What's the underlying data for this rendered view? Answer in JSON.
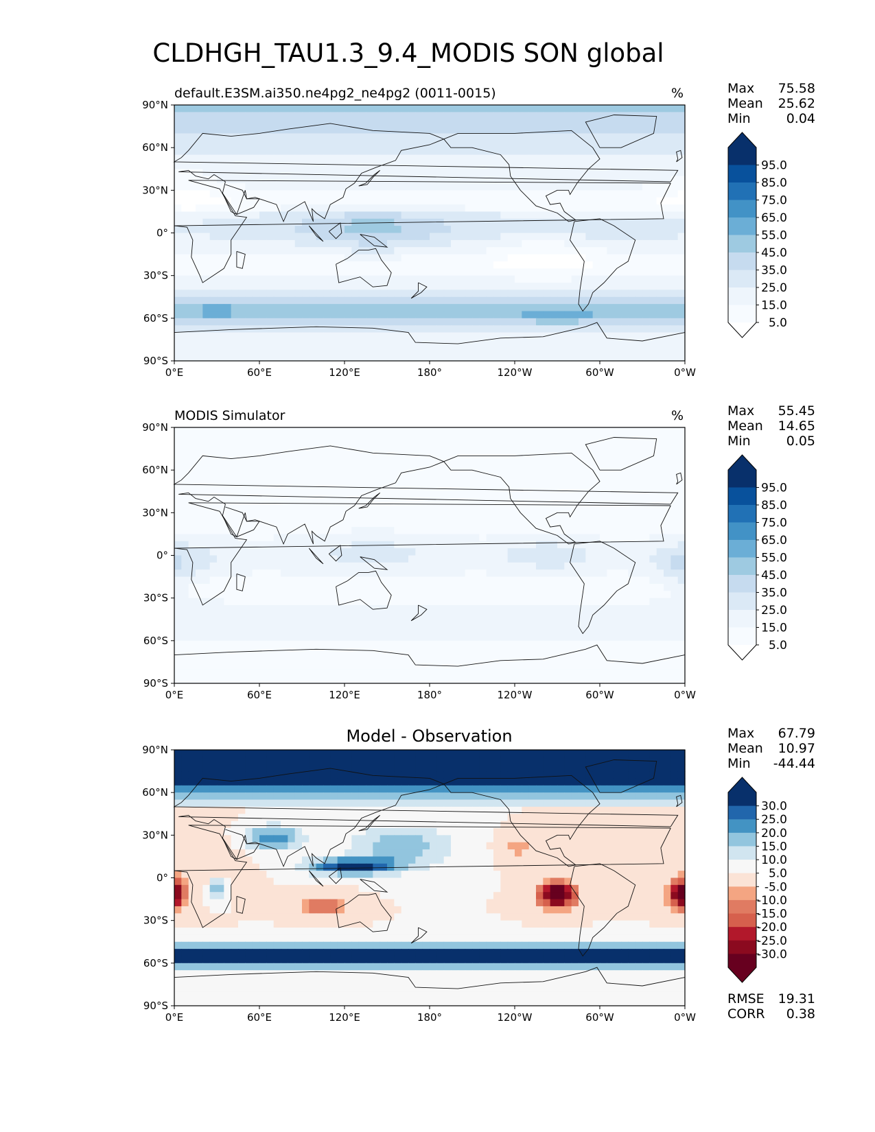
{
  "figure_title": "CLDHGH_TAU1.3_9.4_MODIS SON global",
  "panels": [
    {
      "title_left": "default.E3SM.ai350.ne4pg2_ne4pg2 (0011-0015)",
      "title_center": "",
      "units": "%",
      "stats": [
        {
          "label": "Max",
          "value": "75.58"
        },
        {
          "label": "Mean",
          "value": "25.62"
        },
        {
          "label": "Min",
          "value": "0.04"
        }
      ],
      "colorbar": {
        "labels": [
          "95.0",
          "85.0",
          "75.0",
          "65.0",
          "55.0",
          "45.0",
          "35.0",
          "25.0",
          "15.0",
          "5.0"
        ],
        "colors": [
          "#08306b",
          "#08519c",
          "#2171b5",
          "#4292c6",
          "#6baed6",
          "#9ecae1",
          "#c6dbef",
          "#dbe9f6",
          "#eef5fc",
          "#f7fbff"
        ],
        "extend_top": "#08306b",
        "extend_bottom": "#ffffff"
      },
      "field_type": "model",
      "extra_stats": []
    },
    {
      "title_left": "MODIS Simulator",
      "title_center": "",
      "units": "%",
      "stats": [
        {
          "label": "Max",
          "value": "55.45"
        },
        {
          "label": "Mean",
          "value": "14.65"
        },
        {
          "label": "Min",
          "value": "0.05"
        }
      ],
      "colorbar": {
        "labels": [
          "95.0",
          "85.0",
          "75.0",
          "65.0",
          "55.0",
          "45.0",
          "35.0",
          "25.0",
          "15.0",
          "5.0"
        ],
        "colors": [
          "#08306b",
          "#08519c",
          "#2171b5",
          "#4292c6",
          "#6baed6",
          "#9ecae1",
          "#c6dbef",
          "#dbe9f6",
          "#eef5fc",
          "#f7fbff"
        ],
        "extend_top": "#08306b",
        "extend_bottom": "#ffffff"
      },
      "field_type": "obs",
      "extra_stats": []
    },
    {
      "title_left": "",
      "title_center": "Model - Observation",
      "units": "",
      "stats": [
        {
          "label": "Max",
          "value": "67.79"
        },
        {
          "label": "Mean",
          "value": "10.97"
        },
        {
          "label": "Min",
          "value": "-44.44"
        }
      ],
      "colorbar": {
        "labels": [
          "30.0",
          "25.0",
          "20.0",
          "15.0",
          "10.0",
          "5.0",
          "-5.0",
          "-10.0",
          "-15.0",
          "-20.0",
          "-25.0",
          "-30.0"
        ],
        "colors": [
          "#08306b",
          "#2166ac",
          "#4393c3",
          "#92c5de",
          "#d1e5f0",
          "#f7f7f7",
          "#fbe3d6",
          "#f4a582",
          "#e07b62",
          "#d6604d",
          "#b2182b",
          "#8b0a1f",
          "#67001f"
        ],
        "extend_top": "#08306b",
        "extend_bottom": "#67001f"
      },
      "field_type": "diff",
      "extra_stats": [
        {
          "label": "RMSE",
          "value": "19.31"
        },
        {
          "label": "CORR",
          "value": "0.38"
        }
      ]
    }
  ],
  "axes": {
    "lat_ticks": [
      "90°N",
      "60°N",
      "30°N",
      "0°",
      "30°S",
      "60°S",
      "90°S"
    ],
    "lon_ticks": [
      "0°E",
      "60°E",
      "120°E",
      "180°",
      "120°W",
      "60°W",
      "0°W"
    ]
  }
}
